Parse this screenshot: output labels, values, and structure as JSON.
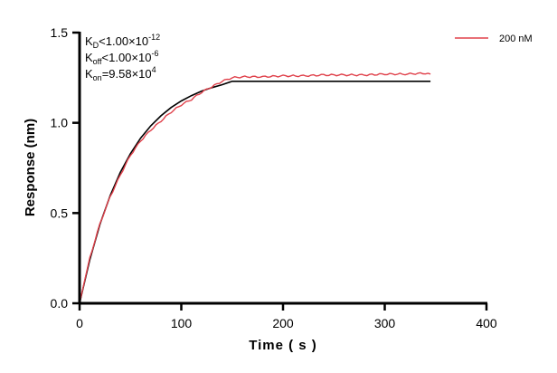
{
  "chart_data": {
    "type": "line",
    "title": "",
    "xlabel": "Time ( s )",
    "ylabel": "Response (nm)",
    "xlim": [
      0,
      400
    ],
    "ylim": [
      0,
      1.5
    ],
    "xticks": [
      "0",
      "100",
      "200",
      "300",
      "400"
    ],
    "yticks": [
      "0.0",
      "0.5",
      "1.0",
      "1.5"
    ],
    "grid": false,
    "legend_position": "top-right",
    "annotations": [
      {
        "main": "K",
        "sub": "D",
        "rel": "<1.00×10",
        "sup": "-12"
      },
      {
        "main": "K",
        "sub": "off",
        "rel": "<1.00×10",
        "sup": "-6"
      },
      {
        "main": "K",
        "sub": "on",
        "rel": "=9.58×10",
        "sup": "4"
      }
    ],
    "series": [
      {
        "name": "200 nM",
        "color": "#e0404a",
        "x": [
          0,
          10,
          20,
          30,
          40,
          50,
          60,
          70,
          80,
          90,
          100,
          110,
          120,
          130,
          140,
          150,
          160,
          180,
          200,
          220,
          240,
          260,
          280,
          300,
          320,
          340,
          345
        ],
        "y": [
          0,
          0.25,
          0.44,
          0.59,
          0.71,
          0.82,
          0.9,
          0.96,
          1.01,
          1.06,
          1.1,
          1.13,
          1.17,
          1.2,
          1.23,
          1.25,
          1.255,
          1.255,
          1.26,
          1.26,
          1.265,
          1.265,
          1.265,
          1.27,
          1.27,
          1.275,
          1.27
        ]
      },
      {
        "role": "fit",
        "color": "#000000",
        "x": [
          0,
          10,
          20,
          30,
          40,
          50,
          60,
          70,
          80,
          90,
          100,
          110,
          120,
          130,
          140,
          150,
          345
        ],
        "y": [
          0,
          0.241,
          0.437,
          0.596,
          0.725,
          0.83,
          0.915,
          0.984,
          1.039,
          1.085,
          1.121,
          1.151,
          1.176,
          1.195,
          1.211,
          1.23,
          1.23
        ]
      }
    ]
  }
}
